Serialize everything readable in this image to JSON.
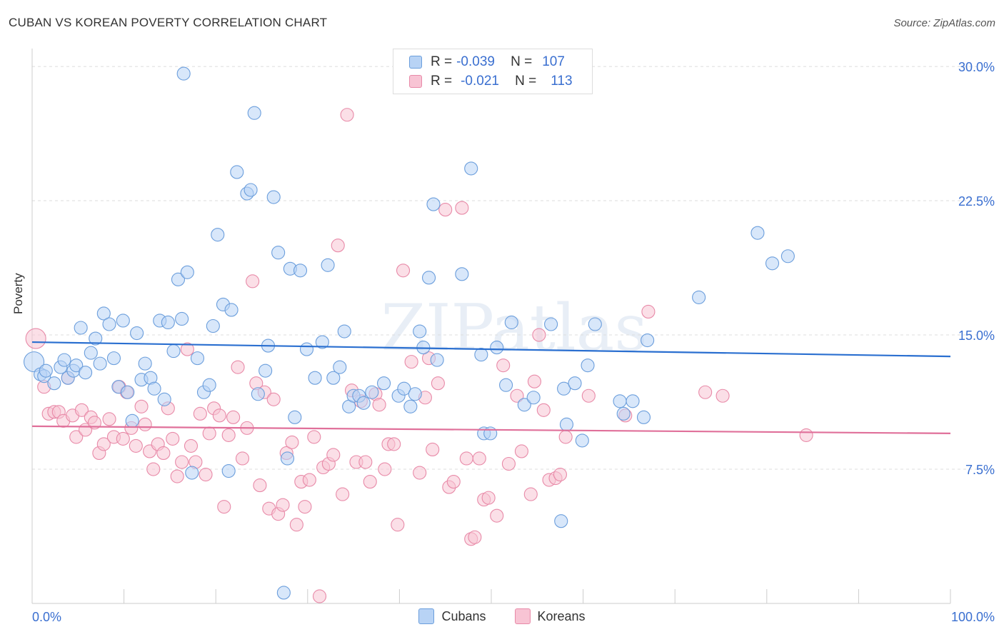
{
  "title": "CUBAN VS KOREAN POVERTY CORRELATION CHART",
  "source": "Source: ZipAtlas.com",
  "watermark": "ZIPatlas",
  "legend": {
    "r_label": "R =",
    "n_label": "N =",
    "rows": [
      {
        "r": "-0.039",
        "n": "107"
      },
      {
        "r": "-0.021",
        "n": "113"
      }
    ]
  },
  "bottom_legend": [
    "Cubans",
    "Koreans"
  ],
  "colors": {
    "cubans_fill": "#b8d3f5",
    "cubans_stroke": "#6b9edc",
    "cubans_line": "#2a6fd0",
    "koreans_fill": "#f8c4d4",
    "koreans_stroke": "#e88aa8",
    "koreans_line": "#e0709a",
    "grid": "#dddddd",
    "tick_text": "#3a6fd0"
  },
  "chart_data": {
    "type": "scatter",
    "title": "CUBAN VS KOREAN POVERTY CORRELATION CHART",
    "xlabel": "",
    "ylabel": "Poverty",
    "xlim": [
      0,
      100
    ],
    "ylim": [
      0,
      31
    ],
    "x_tick_labels": [
      "0.0%",
      "100.0%"
    ],
    "y_ticks": [
      7.5,
      15.0,
      22.5,
      30.0
    ],
    "y_tick_labels": [
      "7.5%",
      "15.0%",
      "22.5%",
      "30.0%"
    ],
    "grid": true,
    "legend_position": "top-center",
    "series": [
      {
        "name": "Cubans",
        "r": -0.039,
        "n": 107,
        "trend": {
          "x": [
            0,
            100
          ],
          "y": [
            14.6,
            13.8
          ]
        },
        "points": [
          [
            0.2,
            13.5
          ],
          [
            0.9,
            12.8
          ],
          [
            1.3,
            12.7
          ],
          [
            1.5,
            13.0
          ],
          [
            2.4,
            12.3
          ],
          [
            3.1,
            13.2
          ],
          [
            3.5,
            13.6
          ],
          [
            3.9,
            12.6
          ],
          [
            4.5,
            13.0
          ],
          [
            4.8,
            13.3
          ],
          [
            5.3,
            15.4
          ],
          [
            5.8,
            12.9
          ],
          [
            6.4,
            14.0
          ],
          [
            6.9,
            14.8
          ],
          [
            7.4,
            13.4
          ],
          [
            7.8,
            16.2
          ],
          [
            8.4,
            15.6
          ],
          [
            8.9,
            13.7
          ],
          [
            9.4,
            12.1
          ],
          [
            9.9,
            15.8
          ],
          [
            10.4,
            11.8
          ],
          [
            10.9,
            10.2
          ],
          [
            11.4,
            15.1
          ],
          [
            11.9,
            12.5
          ],
          [
            12.3,
            13.4
          ],
          [
            12.9,
            12.6
          ],
          [
            13.3,
            12.0
          ],
          [
            13.9,
            15.8
          ],
          [
            14.4,
            11.4
          ],
          [
            14.8,
            15.7
          ],
          [
            15.4,
            14.1
          ],
          [
            15.9,
            18.1
          ],
          [
            16.3,
            15.9
          ],
          [
            16.5,
            29.6
          ],
          [
            16.9,
            18.5
          ],
          [
            17.4,
            7.3
          ],
          [
            18.0,
            13.7
          ],
          [
            18.7,
            11.8
          ],
          [
            19.3,
            12.2
          ],
          [
            19.7,
            15.5
          ],
          [
            20.2,
            20.6
          ],
          [
            20.8,
            16.7
          ],
          [
            21.4,
            7.4
          ],
          [
            21.7,
            16.4
          ],
          [
            22.3,
            24.1
          ],
          [
            23.4,
            22.9
          ],
          [
            23.8,
            23.1
          ],
          [
            24.2,
            27.4
          ],
          [
            24.6,
            11.7
          ],
          [
            25.4,
            13.0
          ],
          [
            25.7,
            14.4
          ],
          [
            26.3,
            22.7
          ],
          [
            26.8,
            19.6
          ],
          [
            27.4,
            0.6
          ],
          [
            27.8,
            8.1
          ],
          [
            28.1,
            18.7
          ],
          [
            28.6,
            10.4
          ],
          [
            29.2,
            18.6
          ],
          [
            29.9,
            14.2
          ],
          [
            30.8,
            12.6
          ],
          [
            31.6,
            14.6
          ],
          [
            32.2,
            18.9
          ],
          [
            32.8,
            12.6
          ],
          [
            33.5,
            13.2
          ],
          [
            34.0,
            15.2
          ],
          [
            34.5,
            11.0
          ],
          [
            35.0,
            11.6
          ],
          [
            35.6,
            11.6
          ],
          [
            36.1,
            11.2
          ],
          [
            37.0,
            11.8
          ],
          [
            38.3,
            12.3
          ],
          [
            39.9,
            11.6
          ],
          [
            40.5,
            12.0
          ],
          [
            41.2,
            11.0
          ],
          [
            41.7,
            11.7
          ],
          [
            42.2,
            15.2
          ],
          [
            42.6,
            14.3
          ],
          [
            43.2,
            18.2
          ],
          [
            43.7,
            22.3
          ],
          [
            44.1,
            13.6
          ],
          [
            46.8,
            18.4
          ],
          [
            47.8,
            24.3
          ],
          [
            48.9,
            13.9
          ],
          [
            49.2,
            9.5
          ],
          [
            49.9,
            9.5
          ],
          [
            50.6,
            14.3
          ],
          [
            51.6,
            12.2
          ],
          [
            52.2,
            15.7
          ],
          [
            53.6,
            11.1
          ],
          [
            54.6,
            11.5
          ],
          [
            56.5,
            15.6
          ],
          [
            57.6,
            4.6
          ],
          [
            57.9,
            12.0
          ],
          [
            58.2,
            10.0
          ],
          [
            59.1,
            12.3
          ],
          [
            59.9,
            9.1
          ],
          [
            60.5,
            13.3
          ],
          [
            61.3,
            15.6
          ],
          [
            64.0,
            11.3
          ],
          [
            64.4,
            10.6
          ],
          [
            65.4,
            11.3
          ],
          [
            66.6,
            10.4
          ],
          [
            67.0,
            14.7
          ],
          [
            72.6,
            17.1
          ],
          [
            79.0,
            20.7
          ],
          [
            80.6,
            19.0
          ],
          [
            82.3,
            19.4
          ]
        ]
      },
      {
        "name": "Koreans",
        "r": -0.021,
        "n": 113,
        "trend": {
          "x": [
            0,
            100
          ],
          "y": [
            9.9,
            9.5
          ]
        },
        "points": [
          [
            0.4,
            14.8
          ],
          [
            1.3,
            12.1
          ],
          [
            1.8,
            10.6
          ],
          [
            2.4,
            10.7
          ],
          [
            2.9,
            10.7
          ],
          [
            3.4,
            10.2
          ],
          [
            3.9,
            12.6
          ],
          [
            4.4,
            10.5
          ],
          [
            4.8,
            9.3
          ],
          [
            5.4,
            10.8
          ],
          [
            5.8,
            9.7
          ],
          [
            6.4,
            10.4
          ],
          [
            6.8,
            10.1
          ],
          [
            7.3,
            8.4
          ],
          [
            7.8,
            8.9
          ],
          [
            8.4,
            10.3
          ],
          [
            8.9,
            9.3
          ],
          [
            9.5,
            12.1
          ],
          [
            9.9,
            9.2
          ],
          [
            10.3,
            11.8
          ],
          [
            10.8,
            9.8
          ],
          [
            11.3,
            8.8
          ],
          [
            11.9,
            11.0
          ],
          [
            12.3,
            10.0
          ],
          [
            12.8,
            8.5
          ],
          [
            13.2,
            7.5
          ],
          [
            13.7,
            8.9
          ],
          [
            14.3,
            8.4
          ],
          [
            14.8,
            10.9
          ],
          [
            15.3,
            9.2
          ],
          [
            15.8,
            7.1
          ],
          [
            16.3,
            7.9
          ],
          [
            16.9,
            14.2
          ],
          [
            17.3,
            8.8
          ],
          [
            17.8,
            7.9
          ],
          [
            18.3,
            10.6
          ],
          [
            18.9,
            7.2
          ],
          [
            19.3,
            9.5
          ],
          [
            19.8,
            10.9
          ],
          [
            20.4,
            10.5
          ],
          [
            20.9,
            5.4
          ],
          [
            21.4,
            9.4
          ],
          [
            21.9,
            10.4
          ],
          [
            22.4,
            13.2
          ],
          [
            22.9,
            8.1
          ],
          [
            23.4,
            9.8
          ],
          [
            24.0,
            18.0
          ],
          [
            24.4,
            12.3
          ],
          [
            24.8,
            6.6
          ],
          [
            25.3,
            11.8
          ],
          [
            25.8,
            5.3
          ],
          [
            26.3,
            11.4
          ],
          [
            26.8,
            5.0
          ],
          [
            27.3,
            5.5
          ],
          [
            27.7,
            8.4
          ],
          [
            28.3,
            9.0
          ],
          [
            28.8,
            4.4
          ],
          [
            29.3,
            6.8
          ],
          [
            29.7,
            5.4
          ],
          [
            30.2,
            6.9
          ],
          [
            30.7,
            9.3
          ],
          [
            31.3,
            0.4
          ],
          [
            31.7,
            7.6
          ],
          [
            32.3,
            7.8
          ],
          [
            32.8,
            8.3
          ],
          [
            33.3,
            20.0
          ],
          [
            33.8,
            6.1
          ],
          [
            34.3,
            27.3
          ],
          [
            34.8,
            11.9
          ],
          [
            35.3,
            7.9
          ],
          [
            35.8,
            11.3
          ],
          [
            36.3,
            7.9
          ],
          [
            36.8,
            6.8
          ],
          [
            37.4,
            11.7
          ],
          [
            37.8,
            11.1
          ],
          [
            38.4,
            7.5
          ],
          [
            38.8,
            8.9
          ],
          [
            39.4,
            8.9
          ],
          [
            39.8,
            4.4
          ],
          [
            40.4,
            18.6
          ],
          [
            41.3,
            13.5
          ],
          [
            42.2,
            7.3
          ],
          [
            42.8,
            11.5
          ],
          [
            43.2,
            13.7
          ],
          [
            43.6,
            8.6
          ],
          [
            44.2,
            12.3
          ],
          [
            45.0,
            22.0
          ],
          [
            45.4,
            6.5
          ],
          [
            45.9,
            6.8
          ],
          [
            46.8,
            22.1
          ],
          [
            47.3,
            8.1
          ],
          [
            47.8,
            3.6
          ],
          [
            48.2,
            3.7
          ],
          [
            48.7,
            8.1
          ],
          [
            49.2,
            5.8
          ],
          [
            49.7,
            5.9
          ],
          [
            50.6,
            4.9
          ],
          [
            51.3,
            13.3
          ],
          [
            51.9,
            7.8
          ],
          [
            52.8,
            11.6
          ],
          [
            53.3,
            8.5
          ],
          [
            54.3,
            6.1
          ],
          [
            54.7,
            12.4
          ],
          [
            55.2,
            15.0
          ],
          [
            55.7,
            10.8
          ],
          [
            56.3,
            6.9
          ],
          [
            57.0,
            7.0
          ],
          [
            57.5,
            7.2
          ],
          [
            58.1,
            9.3
          ],
          [
            60.6,
            11.6
          ],
          [
            64.6,
            10.5
          ],
          [
            67.1,
            16.3
          ],
          [
            73.3,
            11.8
          ],
          [
            75.2,
            11.6
          ],
          [
            84.3,
            9.4
          ]
        ]
      }
    ]
  }
}
